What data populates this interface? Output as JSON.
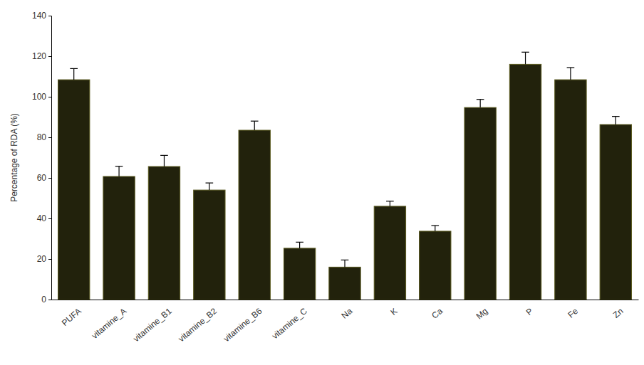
{
  "chart_data": {
    "type": "bar",
    "y_label": "Percentage of RDA (%)",
    "categories": [
      "PUFA",
      "vitamine_A",
      "vitamine_B1",
      "vitamine_B2",
      "vitamine_B6",
      "vitamine_C",
      "Na",
      "K",
      "Ca",
      "Mg",
      "P",
      "Fe",
      "Zn"
    ],
    "values": [
      108.4,
      60.7,
      65.6,
      54,
      83.5,
      25.3,
      16,
      46,
      33.7,
      94.7,
      116,
      108.4,
      86.3
    ],
    "errors": [
      5.5,
      5,
      5.5,
      3.5,
      4.5,
      3,
      3.5,
      2.5,
      2.8,
      4,
      6,
      6,
      4
    ],
    "color": "#22220c",
    "ylim": [
      0,
      140
    ],
    "yticks": [
      0,
      20,
      40,
      60,
      80,
      100,
      120,
      140
    ],
    "grid": false
  }
}
